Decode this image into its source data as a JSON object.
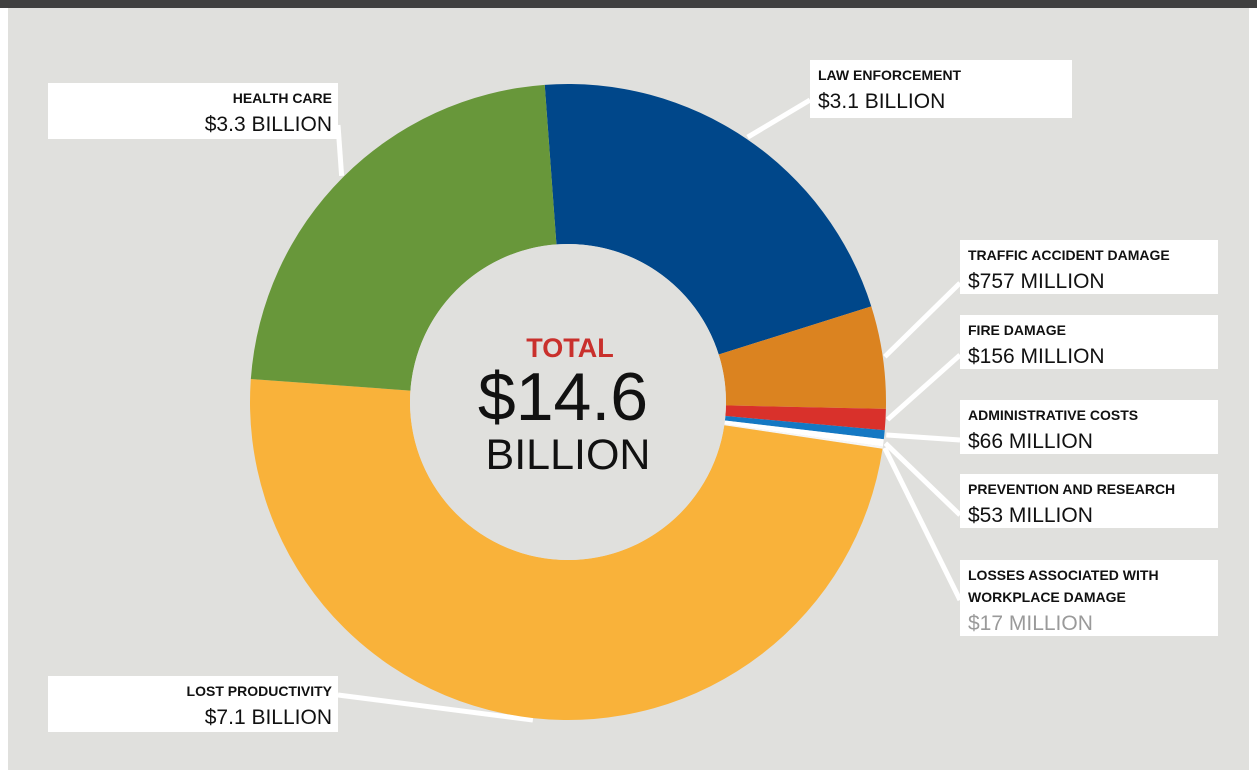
{
  "colors": {
    "background": "#e0e0dd",
    "frame": "#404040",
    "total_label": "#c9302c",
    "label_box": "#ffffff",
    "label_text": "#111111",
    "muted_value": "#9a9a9a"
  },
  "center": {
    "label": "TOTAL",
    "value": "$14.6",
    "unit": "BILLION"
  },
  "chart_data": {
    "type": "pie",
    "donut": true,
    "total": "$14.6 BILLION",
    "slices": [
      {
        "name": "LAW ENFORCEMENT",
        "value_label": "$3.1 BILLION",
        "value": 3.1,
        "color": "#00478a"
      },
      {
        "name": "TRAFFIC ACCIDENT DAMAGE",
        "value_label": "$757 MILLION",
        "value": 0.757,
        "color": "#db8320"
      },
      {
        "name": "FIRE DAMAGE",
        "value_label": "$156 MILLION",
        "value": 0.156,
        "color": "#d9312b"
      },
      {
        "name": "ADMINISTRATIVE COSTS",
        "value_label": "$66 MILLION",
        "value": 0.066,
        "color": "#1478c3"
      },
      {
        "name": "PREVENTION AND RESEARCH",
        "value_label": "$53 MILLION",
        "value": 0.053,
        "color": "#ffffff"
      },
      {
        "name": "LOSSES ASSOCIATED WITH WORKPLACE DAMAGE",
        "value_label": "$17 MILLION",
        "value": 0.017,
        "color": "#f6f6f6"
      },
      {
        "name": "LOST PRODUCTIVITY",
        "value_label": "$7.1 BILLION",
        "value": 7.1,
        "color": "#f9b23a"
      },
      {
        "name": "HEALTH CARE",
        "value_label": "$3.3 BILLION",
        "value": 3.3,
        "color": "#68973a"
      }
    ]
  }
}
